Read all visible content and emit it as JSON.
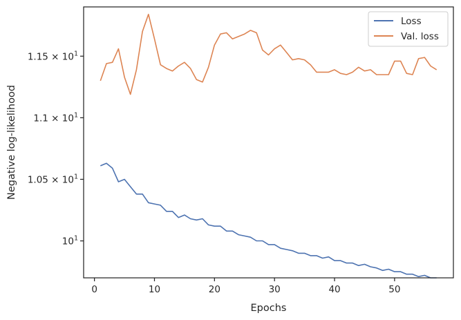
{
  "chart_data": {
    "type": "line",
    "title": "",
    "xlabel": "Epochs",
    "ylabel": "Negative log-likelihood",
    "xlim": [
      -1.8,
      59.8
    ],
    "ylim": [
      9.7,
      11.9
    ],
    "xticks": [
      0,
      10,
      20,
      30,
      40,
      50
    ],
    "xtick_labels": [
      "0",
      "10",
      "20",
      "30",
      "40",
      "50"
    ],
    "yticks": [
      10.0,
      10.5,
      11.0,
      11.5
    ],
    "ytick_labels": [
      {
        "mantissa": "",
        "base": "10",
        "exp": "1"
      },
      {
        "mantissa": "1.05",
        "base": "10",
        "exp": "1"
      },
      {
        "mantissa": "1.1",
        "base": "10",
        "exp": "1"
      },
      {
        "mantissa": "1.15",
        "base": "10",
        "exp": "1"
      }
    ],
    "legend": {
      "position": "top-right"
    },
    "series": [
      {
        "name": "Loss",
        "color": "#4c72b0",
        "x": [
          1,
          2,
          3,
          4,
          5,
          6,
          7,
          8,
          9,
          10,
          11,
          12,
          13,
          14,
          15,
          16,
          17,
          18,
          19,
          20,
          21,
          22,
          23,
          24,
          25,
          26,
          27,
          28,
          29,
          30,
          31,
          32,
          33,
          34,
          35,
          36,
          37,
          38,
          39,
          40,
          41,
          42,
          43,
          44,
          45,
          46,
          47,
          48,
          49,
          50,
          51,
          52,
          53,
          54,
          55,
          56,
          57
        ],
        "values": [
          10.61,
          10.63,
          10.59,
          10.48,
          10.5,
          10.44,
          10.38,
          10.38,
          10.31,
          10.3,
          10.29,
          10.24,
          10.24,
          10.19,
          10.21,
          10.18,
          10.17,
          10.18,
          10.13,
          10.12,
          10.12,
          10.08,
          10.08,
          10.05,
          10.04,
          10.03,
          10.0,
          10.0,
          9.97,
          9.97,
          9.94,
          9.93,
          9.92,
          9.9,
          9.9,
          9.88,
          9.88,
          9.86,
          9.87,
          9.84,
          9.84,
          9.82,
          9.82,
          9.8,
          9.81,
          9.79,
          9.78,
          9.76,
          9.77,
          9.75,
          9.75,
          9.73,
          9.73,
          9.71,
          9.72,
          9.7,
          9.7
        ]
      },
      {
        "name": "Val. loss",
        "color": "#dd8452",
        "x": [
          1,
          2,
          3,
          4,
          5,
          6,
          7,
          8,
          9,
          10,
          11,
          12,
          13,
          14,
          15,
          16,
          17,
          18,
          19,
          20,
          21,
          22,
          23,
          24,
          25,
          26,
          27,
          28,
          29,
          30,
          31,
          32,
          33,
          34,
          35,
          36,
          37,
          38,
          39,
          40,
          41,
          42,
          43,
          44,
          45,
          46,
          47,
          48,
          49,
          50,
          51,
          52,
          53,
          54,
          55,
          56,
          57
        ],
        "values": [
          11.3,
          11.44,
          11.45,
          11.56,
          11.33,
          11.19,
          11.39,
          11.7,
          11.84,
          11.64,
          11.43,
          11.4,
          11.38,
          11.42,
          11.45,
          11.4,
          11.31,
          11.29,
          11.41,
          11.59,
          11.68,
          11.69,
          11.64,
          11.66,
          11.68,
          11.71,
          11.69,
          11.55,
          11.51,
          11.56,
          11.59,
          11.53,
          11.47,
          11.48,
          11.47,
          11.43,
          11.37,
          11.37,
          11.37,
          11.39,
          11.36,
          11.35,
          11.37,
          11.41,
          11.38,
          11.39,
          11.35,
          11.35,
          11.35,
          11.46,
          11.46,
          11.36,
          11.35,
          11.48,
          11.49,
          11.42,
          11.39
        ]
      }
    ]
  }
}
